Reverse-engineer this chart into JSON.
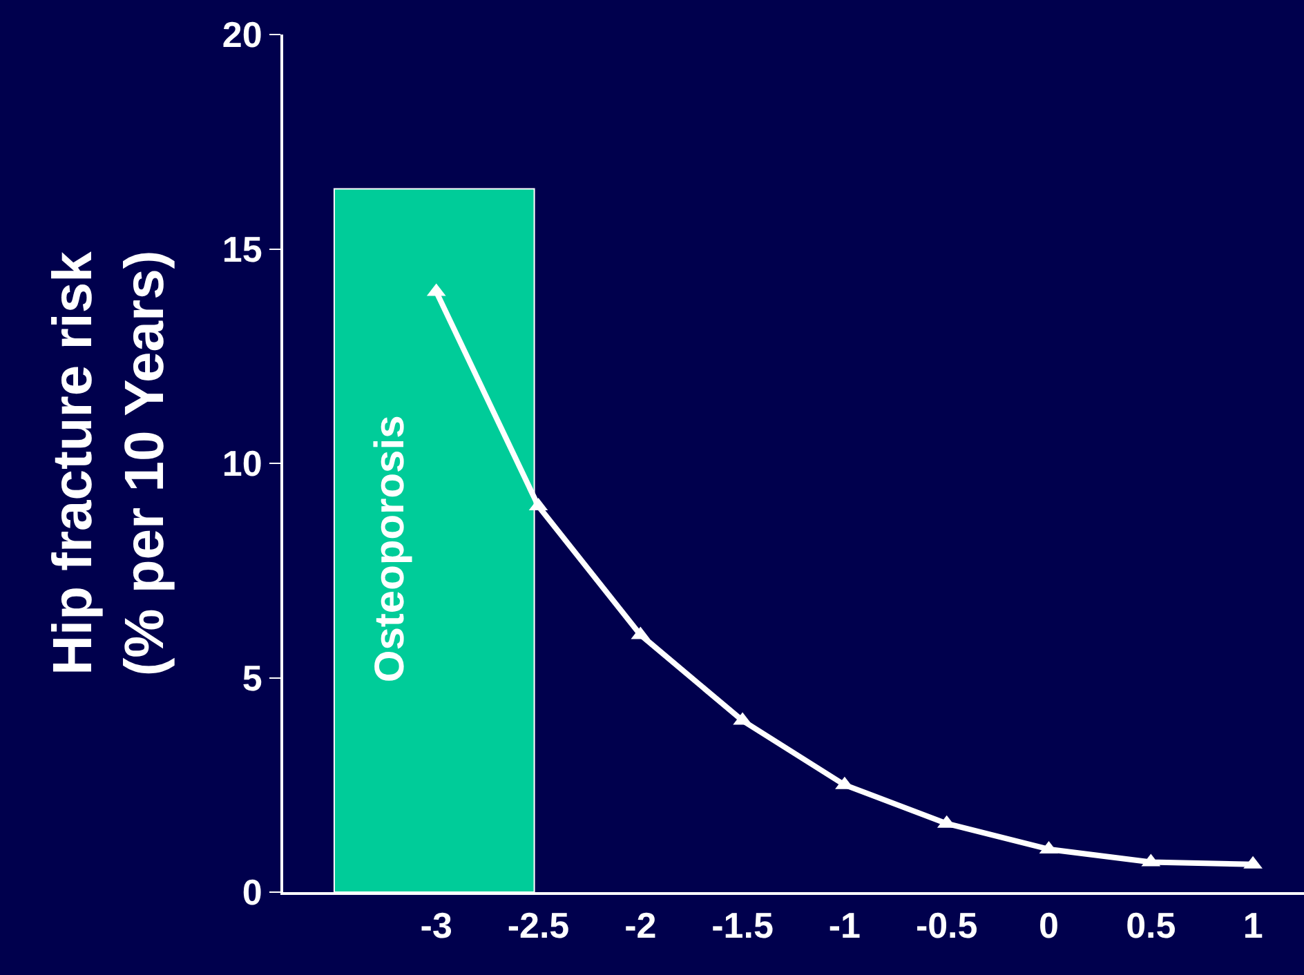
{
  "chart_data": {
    "type": "line",
    "ylabel": "Hip fracture risk\n(% per 10 Years)",
    "x": [
      -3,
      -2.5,
      -2,
      -1.5,
      -1,
      -0.5,
      0,
      0.5,
      1
    ],
    "series": [
      {
        "color": "#ffffff",
        "values": [
          14,
          9,
          6,
          4,
          2.5,
          1.6,
          1.0,
          0.7,
          0.65
        ]
      }
    ],
    "xlim": [
      -3.75,
      1.25
    ],
    "xticks": [
      -3,
      -2.5,
      -2,
      -1.5,
      -1,
      -0.5,
      0,
      0.5,
      1
    ],
    "ylim": [
      0,
      20
    ],
    "yticks": [
      0,
      5,
      10,
      15,
      20
    ],
    "bands": [
      {
        "axis": "x",
        "from": -3.5,
        "to": -2.52,
        "label": "Osteoporosis",
        "color": "#00cc99"
      }
    ],
    "marker": "triangle",
    "line_style": "solid",
    "grid": false,
    "legend": false
  }
}
